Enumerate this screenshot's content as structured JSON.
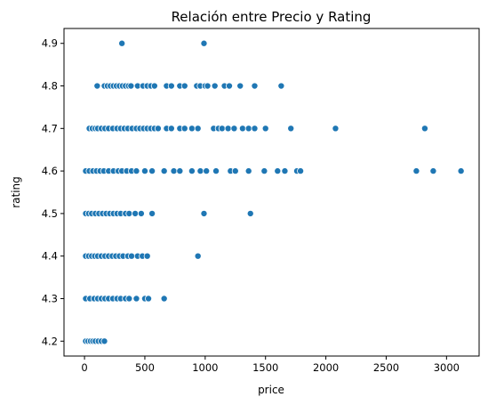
{
  "chart_data": {
    "type": "scatter",
    "title": "Relación entre Precio y Rating",
    "xlabel": "price",
    "ylabel": "rating",
    "xlim": [
      -170,
      3270
    ],
    "ylim": [
      4.165,
      4.935
    ],
    "xticks": [
      0,
      500,
      1000,
      1500,
      2000,
      2500,
      3000
    ],
    "yticks": [
      4.2,
      4.3,
      4.4,
      4.5,
      4.6,
      4.7,
      4.8,
      4.9
    ],
    "color": "#1f77b4",
    "grid": false,
    "points": [
      {
        "x": 310,
        "y": 4.9
      },
      {
        "x": 990,
        "y": 4.9
      },
      {
        "x": 105,
        "y": 4.8
      },
      {
        "x": 165,
        "y": 4.8
      },
      {
        "x": 190,
        "y": 4.8
      },
      {
        "x": 215,
        "y": 4.8
      },
      {
        "x": 240,
        "y": 4.8
      },
      {
        "x": 265,
        "y": 4.8
      },
      {
        "x": 290,
        "y": 4.8
      },
      {
        "x": 315,
        "y": 4.8
      },
      {
        "x": 340,
        "y": 4.8
      },
      {
        "x": 365,
        "y": 4.8
      },
      {
        "x": 385,
        "y": 4.8
      },
      {
        "x": 440,
        "y": 4.8
      },
      {
        "x": 485,
        "y": 4.8
      },
      {
        "x": 520,
        "y": 4.8
      },
      {
        "x": 550,
        "y": 4.8
      },
      {
        "x": 580,
        "y": 4.8
      },
      {
        "x": 680,
        "y": 4.8
      },
      {
        "x": 720,
        "y": 4.8
      },
      {
        "x": 790,
        "y": 4.8
      },
      {
        "x": 830,
        "y": 4.8
      },
      {
        "x": 930,
        "y": 4.8
      },
      {
        "x": 960,
        "y": 4.8
      },
      {
        "x": 1000,
        "y": 4.8
      },
      {
        "x": 1020,
        "y": 4.8
      },
      {
        "x": 1080,
        "y": 4.8
      },
      {
        "x": 1160,
        "y": 4.8
      },
      {
        "x": 1200,
        "y": 4.8
      },
      {
        "x": 1290,
        "y": 4.8
      },
      {
        "x": 1410,
        "y": 4.8
      },
      {
        "x": 1630,
        "y": 4.8
      },
      {
        "x": 40,
        "y": 4.7
      },
      {
        "x": 65,
        "y": 4.7
      },
      {
        "x": 90,
        "y": 4.7
      },
      {
        "x": 110,
        "y": 4.7
      },
      {
        "x": 140,
        "y": 4.7
      },
      {
        "x": 170,
        "y": 4.7
      },
      {
        "x": 200,
        "y": 4.7
      },
      {
        "x": 235,
        "y": 4.7
      },
      {
        "x": 270,
        "y": 4.7
      },
      {
        "x": 300,
        "y": 4.7
      },
      {
        "x": 330,
        "y": 4.7
      },
      {
        "x": 360,
        "y": 4.7
      },
      {
        "x": 395,
        "y": 4.7
      },
      {
        "x": 430,
        "y": 4.7
      },
      {
        "x": 460,
        "y": 4.7
      },
      {
        "x": 490,
        "y": 4.7
      },
      {
        "x": 520,
        "y": 4.7
      },
      {
        "x": 550,
        "y": 4.7
      },
      {
        "x": 580,
        "y": 4.7
      },
      {
        "x": 610,
        "y": 4.7
      },
      {
        "x": 680,
        "y": 4.7
      },
      {
        "x": 720,
        "y": 4.7
      },
      {
        "x": 790,
        "y": 4.7
      },
      {
        "x": 830,
        "y": 4.7
      },
      {
        "x": 890,
        "y": 4.7
      },
      {
        "x": 940,
        "y": 4.7
      },
      {
        "x": 1070,
        "y": 4.7
      },
      {
        "x": 1110,
        "y": 4.7
      },
      {
        "x": 1140,
        "y": 4.7
      },
      {
        "x": 1190,
        "y": 4.7
      },
      {
        "x": 1240,
        "y": 4.7
      },
      {
        "x": 1310,
        "y": 4.7
      },
      {
        "x": 1360,
        "y": 4.7
      },
      {
        "x": 1410,
        "y": 4.7
      },
      {
        "x": 1500,
        "y": 4.7
      },
      {
        "x": 1710,
        "y": 4.7
      },
      {
        "x": 2080,
        "y": 4.7
      },
      {
        "x": 2820,
        "y": 4.7
      },
      {
        "x": 10,
        "y": 4.6
      },
      {
        "x": 40,
        "y": 4.6
      },
      {
        "x": 70,
        "y": 4.6
      },
      {
        "x": 100,
        "y": 4.6
      },
      {
        "x": 130,
        "y": 4.6
      },
      {
        "x": 160,
        "y": 4.6
      },
      {
        "x": 200,
        "y": 4.6
      },
      {
        "x": 240,
        "y": 4.6
      },
      {
        "x": 280,
        "y": 4.6
      },
      {
        "x": 310,
        "y": 4.6
      },
      {
        "x": 350,
        "y": 4.6
      },
      {
        "x": 390,
        "y": 4.6
      },
      {
        "x": 430,
        "y": 4.6
      },
      {
        "x": 500,
        "y": 4.6
      },
      {
        "x": 560,
        "y": 4.6
      },
      {
        "x": 660,
        "y": 4.6
      },
      {
        "x": 740,
        "y": 4.6
      },
      {
        "x": 790,
        "y": 4.6
      },
      {
        "x": 890,
        "y": 4.6
      },
      {
        "x": 960,
        "y": 4.6
      },
      {
        "x": 1010,
        "y": 4.6
      },
      {
        "x": 1090,
        "y": 4.6
      },
      {
        "x": 1210,
        "y": 4.6
      },
      {
        "x": 1250,
        "y": 4.6
      },
      {
        "x": 1360,
        "y": 4.6
      },
      {
        "x": 1490,
        "y": 4.6
      },
      {
        "x": 1600,
        "y": 4.6
      },
      {
        "x": 1660,
        "y": 4.6
      },
      {
        "x": 1760,
        "y": 4.6
      },
      {
        "x": 1790,
        "y": 4.6
      },
      {
        "x": 2750,
        "y": 4.6
      },
      {
        "x": 2890,
        "y": 4.6
      },
      {
        "x": 3120,
        "y": 4.6
      },
      {
        "x": 10,
        "y": 4.5
      },
      {
        "x": 35,
        "y": 4.5
      },
      {
        "x": 60,
        "y": 4.5
      },
      {
        "x": 90,
        "y": 4.5
      },
      {
        "x": 120,
        "y": 4.5
      },
      {
        "x": 150,
        "y": 4.5
      },
      {
        "x": 180,
        "y": 4.5
      },
      {
        "x": 210,
        "y": 4.5
      },
      {
        "x": 240,
        "y": 4.5
      },
      {
        "x": 270,
        "y": 4.5
      },
      {
        "x": 300,
        "y": 4.5
      },
      {
        "x": 340,
        "y": 4.5
      },
      {
        "x": 370,
        "y": 4.5
      },
      {
        "x": 420,
        "y": 4.5
      },
      {
        "x": 470,
        "y": 4.5
      },
      {
        "x": 560,
        "y": 4.5
      },
      {
        "x": 990,
        "y": 4.5
      },
      {
        "x": 1375,
        "y": 4.5
      },
      {
        "x": 10,
        "y": 4.4
      },
      {
        "x": 35,
        "y": 4.4
      },
      {
        "x": 60,
        "y": 4.4
      },
      {
        "x": 85,
        "y": 4.4
      },
      {
        "x": 110,
        "y": 4.4
      },
      {
        "x": 140,
        "y": 4.4
      },
      {
        "x": 170,
        "y": 4.4
      },
      {
        "x": 200,
        "y": 4.4
      },
      {
        "x": 230,
        "y": 4.4
      },
      {
        "x": 260,
        "y": 4.4
      },
      {
        "x": 290,
        "y": 4.4
      },
      {
        "x": 320,
        "y": 4.4
      },
      {
        "x": 360,
        "y": 4.4
      },
      {
        "x": 390,
        "y": 4.4
      },
      {
        "x": 440,
        "y": 4.4
      },
      {
        "x": 480,
        "y": 4.4
      },
      {
        "x": 520,
        "y": 4.4
      },
      {
        "x": 940,
        "y": 4.4
      },
      {
        "x": 10,
        "y": 4.3
      },
      {
        "x": 45,
        "y": 4.3
      },
      {
        "x": 80,
        "y": 4.3
      },
      {
        "x": 110,
        "y": 4.3
      },
      {
        "x": 140,
        "y": 4.3
      },
      {
        "x": 170,
        "y": 4.3
      },
      {
        "x": 200,
        "y": 4.3
      },
      {
        "x": 235,
        "y": 4.3
      },
      {
        "x": 270,
        "y": 4.3
      },
      {
        "x": 300,
        "y": 4.3
      },
      {
        "x": 340,
        "y": 4.3
      },
      {
        "x": 370,
        "y": 4.3
      },
      {
        "x": 430,
        "y": 4.3
      },
      {
        "x": 500,
        "y": 4.3
      },
      {
        "x": 530,
        "y": 4.3
      },
      {
        "x": 660,
        "y": 4.3
      },
      {
        "x": 10,
        "y": 4.2
      },
      {
        "x": 30,
        "y": 4.2
      },
      {
        "x": 50,
        "y": 4.2
      },
      {
        "x": 70,
        "y": 4.2
      },
      {
        "x": 90,
        "y": 4.2
      },
      {
        "x": 115,
        "y": 4.2
      },
      {
        "x": 140,
        "y": 4.2
      },
      {
        "x": 165,
        "y": 4.2
      }
    ]
  }
}
